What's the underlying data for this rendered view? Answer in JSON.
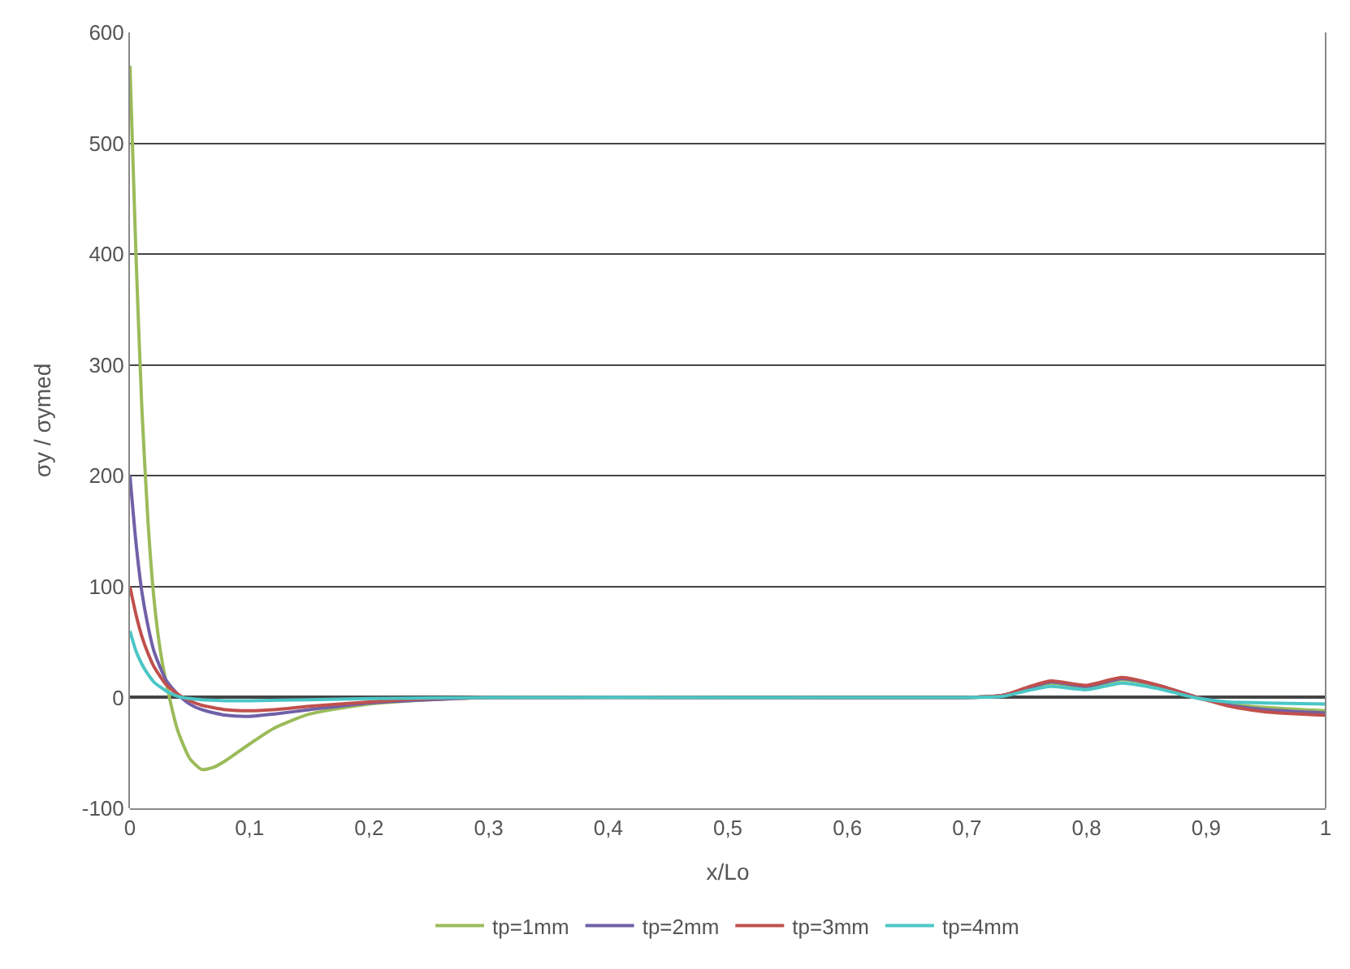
{
  "chart_data": {
    "type": "line",
    "xlabel": "x/Lo",
    "ylabel": "σy / σymed",
    "xlim": [
      0,
      1
    ],
    "ylim": [
      -100,
      600
    ],
    "xticks": [
      {
        "value": 0,
        "label": "0"
      },
      {
        "value": 0.1,
        "label": "0,1"
      },
      {
        "value": 0.2,
        "label": "0,2"
      },
      {
        "value": 0.3,
        "label": "0,3"
      },
      {
        "value": 0.4,
        "label": "0,4"
      },
      {
        "value": 0.5,
        "label": "0,5"
      },
      {
        "value": 0.6,
        "label": "0,6"
      },
      {
        "value": 0.7,
        "label": "0,7"
      },
      {
        "value": 0.8,
        "label": "0,8"
      },
      {
        "value": 0.9,
        "label": "0,9"
      },
      {
        "value": 1,
        "label": "1"
      }
    ],
    "yticks": [
      -100,
      0,
      100,
      200,
      300,
      400,
      500,
      600
    ],
    "grid": "y",
    "legend": "bottom",
    "marker": "none",
    "line_style": "solid",
    "series": [
      {
        "name": "tp=1mm",
        "color": "#9bbb59",
        "x": [
          0,
          0.005,
          0.01,
          0.015,
          0.02,
          0.025,
          0.03,
          0.04,
          0.05,
          0.06,
          0.07,
          0.08,
          0.1,
          0.12,
          0.15,
          0.2,
          0.25,
          0.3,
          0.5,
          0.7,
          0.73,
          0.75,
          0.77,
          0.8,
          0.83,
          0.86,
          0.89,
          0.92,
          0.95,
          1
        ],
        "values": [
          570,
          400,
          260,
          160,
          90,
          45,
          15,
          -30,
          -55,
          -65,
          -63,
          -57,
          -42,
          -28,
          -15,
          -6,
          -2,
          0,
          0,
          0,
          2,
          8,
          13,
          9,
          16,
          10,
          0,
          -6,
          -9,
          -12
        ]
      },
      {
        "name": "tp=2mm",
        "color": "#7060a8",
        "x": [
          0,
          0.005,
          0.01,
          0.015,
          0.02,
          0.03,
          0.04,
          0.05,
          0.06,
          0.08,
          0.1,
          0.12,
          0.15,
          0.2,
          0.25,
          0.3,
          0.5,
          0.7,
          0.73,
          0.75,
          0.77,
          0.8,
          0.83,
          0.86,
          0.89,
          0.92,
          0.95,
          1
        ],
        "values": [
          200,
          140,
          95,
          65,
          42,
          16,
          3,
          -6,
          -11,
          -16,
          -17,
          -15,
          -11,
          -5,
          -2,
          0,
          0,
          0,
          2,
          8,
          14,
          10,
          17,
          11,
          1,
          -7,
          -11,
          -14
        ]
      },
      {
        "name": "tp=3mm",
        "color": "#c0504d",
        "x": [
          0,
          0.005,
          0.01,
          0.015,
          0.02,
          0.03,
          0.04,
          0.05,
          0.06,
          0.08,
          0.1,
          0.12,
          0.15,
          0.2,
          0.25,
          0.3,
          0.5,
          0.7,
          0.73,
          0.75,
          0.77,
          0.8,
          0.83,
          0.86,
          0.89,
          0.92,
          0.95,
          1
        ],
        "values": [
          100,
          75,
          55,
          40,
          28,
          12,
          3,
          -3,
          -7,
          -11,
          -12,
          -11,
          -8,
          -4,
          -1,
          0,
          0,
          0,
          2,
          9,
          15,
          11,
          18,
          11,
          1,
          -8,
          -13,
          -16
        ]
      },
      {
        "name": "tp=4mm",
        "color": "#4bc6c6",
        "x": [
          0,
          0.005,
          0.01,
          0.015,
          0.02,
          0.03,
          0.04,
          0.05,
          0.06,
          0.08,
          0.1,
          0.15,
          0.2,
          0.3,
          0.5,
          0.7,
          0.73,
          0.75,
          0.77,
          0.8,
          0.83,
          0.86,
          0.89,
          0.92,
          0.95,
          1
        ],
        "values": [
          60,
          42,
          30,
          21,
          14,
          6,
          1,
          -1,
          -2,
          -3,
          -3,
          -2,
          -1,
          0,
          0,
          0,
          1,
          6,
          10,
          7,
          13,
          8,
          0,
          -4,
          -5,
          -6
        ]
      }
    ]
  }
}
